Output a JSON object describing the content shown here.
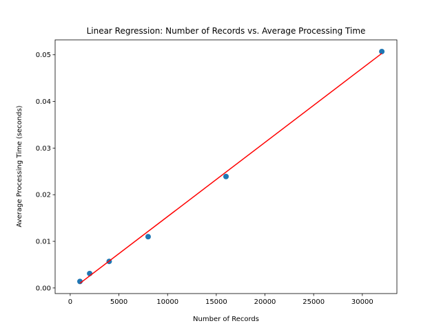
{
  "chart_data": {
    "type": "scatter",
    "title": "Linear Regression: Number of Records vs. Average Processing Time",
    "xlabel": "Number of Records",
    "ylabel": "Average Processing Time (seconds)",
    "xlim": [
      -1550,
      33550
    ],
    "ylim": [
      -0.0012,
      0.0532
    ],
    "xticks": [
      0,
      5000,
      10000,
      15000,
      20000,
      25000,
      30000
    ],
    "yticks": [
      0.0,
      0.01,
      0.02,
      0.03,
      0.04,
      0.05
    ],
    "xtick_labels": [
      "0",
      "5000",
      "10000",
      "15000",
      "20000",
      "25000",
      "30000"
    ],
    "ytick_labels": [
      "0.00",
      "0.01",
      "0.02",
      "0.03",
      "0.04",
      "0.05"
    ],
    "grid": false,
    "series": [
      {
        "kind": "scatter",
        "color": "#1f77b4",
        "points": [
          {
            "x": 1000,
            "y": 0.0014
          },
          {
            "x": 2000,
            "y": 0.0031
          },
          {
            "x": 4000,
            "y": 0.0057
          },
          {
            "x": 8000,
            "y": 0.011
          },
          {
            "x": 16000,
            "y": 0.0239
          },
          {
            "x": 32000,
            "y": 0.0507
          }
        ]
      },
      {
        "kind": "line",
        "color": "#ff0000",
        "points": [
          {
            "x": 1000,
            "y": 0.001
          },
          {
            "x": 32000,
            "y": 0.0503
          }
        ]
      }
    ]
  }
}
